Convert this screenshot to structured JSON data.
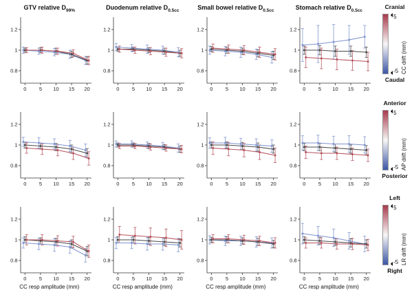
{
  "figure": {
    "xlabel": "CC resp amplitude (mm)",
    "columns": [
      {
        "pre": "GTV relative D",
        "sub": "99%"
      },
      {
        "pre": "Duodenum relative D",
        "sub": "0.5cc"
      },
      {
        "pre": "Small bowel relative D",
        "sub": "0.5cc"
      },
      {
        "pre": "Stomach relative D",
        "sub": "0.5cc"
      }
    ],
    "rows": [
      {
        "colorbar": {
          "top": "Cranial",
          "bottom": "Caudal",
          "label": "CC drift (mm)",
          "max": "5",
          "min": "-5"
        }
      },
      {
        "colorbar": {
          "top": "Anterior",
          "bottom": "Posterior",
          "label": "AP drift (mm)",
          "max": "5",
          "min": "-5"
        }
      },
      {
        "colorbar": {
          "top": "Left",
          "bottom": "Right",
          "label": "LR drift (mm)",
          "max": "5",
          "min": "-5"
        }
      }
    ],
    "colorbar_colors": {
      "top": "#a83a4c",
      "mid": "#f7f6f6",
      "bottom": "#3c56a6"
    },
    "series_colors": {
      "negative": "#7f93cf",
      "zero": "#4a4a4a",
      "positive": "#b5515d"
    }
  },
  "chart_data": [
    {
      "type": "line",
      "title": "GTV relative D99%",
      "drift_axis": "CC",
      "x": [
        0,
        5,
        10,
        15,
        20
      ],
      "ylim": [
        0.68,
        1.32
      ],
      "yticks": [
        0.8,
        1,
        1.2
      ],
      "series": [
        {
          "name": "-5 mm drift",
          "color": "#7f93cf",
          "values": [
            1.0,
            0.99,
            0.98,
            0.96,
            0.9
          ],
          "err": [
            0.03,
            0.03,
            0.035,
            0.04,
            0.04
          ]
        },
        {
          "name": "0 mm drift",
          "color": "#4a4a4a",
          "values": [
            1.0,
            1.0,
            0.99,
            0.96,
            0.9
          ],
          "err": [
            0.02,
            0.025,
            0.03,
            0.03,
            0.035
          ]
        },
        {
          "name": "+5 mm drift",
          "color": "#b5515d",
          "values": [
            1.0,
            1.0,
            0.99,
            0.97,
            0.9
          ],
          "err": [
            0.025,
            0.03,
            0.03,
            0.035,
            0.04
          ]
        }
      ]
    },
    {
      "type": "line",
      "title": "Duodenum relative D0.5cc",
      "drift_axis": "CC",
      "x": [
        0,
        5,
        10,
        15,
        20
      ],
      "ylim": [
        0.68,
        1.32
      ],
      "yticks": [
        0.8,
        1,
        1.2
      ],
      "series": [
        {
          "name": "-5 mm drift",
          "color": "#7f93cf",
          "values": [
            1.03,
            1.02,
            1.01,
            1.0,
            0.98
          ],
          "err": [
            0.035,
            0.035,
            0.04,
            0.04,
            0.045
          ]
        },
        {
          "name": "0 mm drift",
          "color": "#4a4a4a",
          "values": [
            1.01,
            1.01,
            1.0,
            0.99,
            0.97
          ],
          "err": [
            0.02,
            0.02,
            0.025,
            0.03,
            0.03
          ]
        },
        {
          "name": "+5 mm drift",
          "color": "#b5515d",
          "values": [
            1.01,
            1.0,
            0.99,
            0.98,
            0.97
          ],
          "err": [
            0.03,
            0.03,
            0.035,
            0.04,
            0.045
          ]
        }
      ]
    },
    {
      "type": "line",
      "title": "Small bowel relative D0.5cc",
      "drift_axis": "CC",
      "x": [
        0,
        5,
        10,
        15,
        20
      ],
      "ylim": [
        0.68,
        1.32
      ],
      "yticks": [
        0.8,
        1,
        1.2
      ],
      "series": [
        {
          "name": "-5 mm drift",
          "color": "#7f93cf",
          "values": [
            1.0,
            0.99,
            0.98,
            0.96,
            0.93
          ],
          "err": [
            0.04,
            0.045,
            0.05,
            0.05,
            0.055
          ]
        },
        {
          "name": "0 mm drift",
          "color": "#4a4a4a",
          "values": [
            1.01,
            1.0,
            0.99,
            0.97,
            0.95
          ],
          "err": [
            0.025,
            0.03,
            0.03,
            0.035,
            0.04
          ]
        },
        {
          "name": "+5 mm drift",
          "color": "#b5515d",
          "values": [
            1.02,
            1.01,
            1.0,
            0.98,
            0.96
          ],
          "err": [
            0.04,
            0.04,
            0.045,
            0.05,
            0.055
          ]
        }
      ]
    },
    {
      "type": "line",
      "title": "Stomach relative D0.5cc",
      "drift_axis": "CC",
      "x": [
        0,
        5,
        10,
        15,
        20
      ],
      "ylim": [
        0.68,
        1.32
      ],
      "yticks": [
        0.8,
        1,
        1.2
      ],
      "series": [
        {
          "name": "-5 mm drift",
          "color": "#7f93cf",
          "values": [
            1.05,
            1.06,
            1.08,
            1.1,
            1.13
          ],
          "err": [
            0.16,
            0.18,
            0.17,
            0.14,
            0.11
          ]
        },
        {
          "name": "0 mm drift",
          "color": "#4a4a4a",
          "values": [
            1.0,
            1.0,
            0.99,
            0.99,
            0.98
          ],
          "err": [
            0.04,
            0.045,
            0.05,
            0.05,
            0.05
          ]
        },
        {
          "name": "+5 mm drift",
          "color": "#b5515d",
          "values": [
            0.93,
            0.92,
            0.91,
            0.9,
            0.89
          ],
          "err": [
            0.1,
            0.1,
            0.1,
            0.095,
            0.09
          ]
        }
      ]
    },
    {
      "type": "line",
      "title": "GTV relative D99%",
      "drift_axis": "AP",
      "x": [
        0,
        5,
        10,
        15,
        20
      ],
      "ylim": [
        0.68,
        1.32
      ],
      "yticks": [
        0.8,
        1,
        1.2
      ],
      "series": [
        {
          "name": "-5 mm drift",
          "color": "#7f93cf",
          "values": [
            1.03,
            1.02,
            1.01,
            0.99,
            0.95
          ],
          "err": [
            0.045,
            0.05,
            0.05,
            0.055,
            0.06
          ]
        },
        {
          "name": "0 mm drift",
          "color": "#4a4a4a",
          "values": [
            1.0,
            0.99,
            0.98,
            0.96,
            0.92
          ],
          "err": [
            0.03,
            0.03,
            0.035,
            0.04,
            0.045
          ]
        },
        {
          "name": "+5 mm drift",
          "color": "#b5515d",
          "values": [
            0.97,
            0.96,
            0.95,
            0.92,
            0.87
          ],
          "err": [
            0.05,
            0.05,
            0.055,
            0.06,
            0.065
          ]
        }
      ]
    },
    {
      "type": "line",
      "title": "Duodenum relative D0.5cc",
      "drift_axis": "AP",
      "x": [
        0,
        5,
        10,
        15,
        20
      ],
      "ylim": [
        0.68,
        1.32
      ],
      "yticks": [
        0.8,
        1,
        1.2
      ],
      "series": [
        {
          "name": "-5 mm drift",
          "color": "#7f93cf",
          "values": [
            1.01,
            1.01,
            1.0,
            0.99,
            0.97
          ],
          "err": [
            0.03,
            0.03,
            0.03,
            0.035,
            0.04
          ]
        },
        {
          "name": "0 mm drift",
          "color": "#4a4a4a",
          "values": [
            1.0,
            1.0,
            0.99,
            0.98,
            0.96
          ],
          "err": [
            0.02,
            0.02,
            0.025,
            0.025,
            0.03
          ]
        },
        {
          "name": "+5 mm drift",
          "color": "#b5515d",
          "values": [
            0.99,
            0.99,
            0.98,
            0.97,
            0.96
          ],
          "err": [
            0.025,
            0.025,
            0.03,
            0.03,
            0.035
          ]
        }
      ]
    },
    {
      "type": "line",
      "title": "Small bowel relative D0.5cc",
      "drift_axis": "AP",
      "x": [
        0,
        5,
        10,
        15,
        20
      ],
      "ylim": [
        0.68,
        1.32
      ],
      "yticks": [
        0.8,
        1,
        1.2
      ],
      "series": [
        {
          "name": "-5 mm drift",
          "color": "#7f93cf",
          "values": [
            1.02,
            1.02,
            1.01,
            1.0,
            0.99
          ],
          "err": [
            0.05,
            0.055,
            0.055,
            0.06,
            0.06
          ]
        },
        {
          "name": "0 mm drift",
          "color": "#4a4a4a",
          "values": [
            1.0,
            1.0,
            0.99,
            0.98,
            0.96
          ],
          "err": [
            0.03,
            0.03,
            0.035,
            0.04,
            0.04
          ]
        },
        {
          "name": "+5 mm drift",
          "color": "#b5515d",
          "values": [
            0.97,
            0.96,
            0.95,
            0.93,
            0.9
          ],
          "err": [
            0.06,
            0.065,
            0.065,
            0.07,
            0.07
          ]
        }
      ]
    },
    {
      "type": "line",
      "title": "Stomach relative D0.5cc",
      "drift_axis": "AP",
      "x": [
        0,
        5,
        10,
        15,
        20
      ],
      "ylim": [
        0.68,
        1.32
      ],
      "yticks": [
        0.8,
        1,
        1.2
      ],
      "series": [
        {
          "name": "-5 mm drift",
          "color": "#7f93cf",
          "values": [
            1.02,
            1.02,
            1.01,
            1.01,
            1.0
          ],
          "err": [
            0.07,
            0.075,
            0.075,
            0.08,
            0.08
          ]
        },
        {
          "name": "0 mm drift",
          "color": "#4a4a4a",
          "values": [
            0.98,
            0.98,
            0.97,
            0.96,
            0.95
          ],
          "err": [
            0.035,
            0.035,
            0.04,
            0.04,
            0.045
          ]
        },
        {
          "name": "+5 mm drift",
          "color": "#b5515d",
          "values": [
            0.93,
            0.92,
            0.92,
            0.91,
            0.9
          ],
          "err": [
            0.06,
            0.06,
            0.06,
            0.06,
            0.06
          ]
        }
      ]
    },
    {
      "type": "line",
      "title": "GTV relative D99%",
      "drift_axis": "LR",
      "x": [
        0,
        5,
        10,
        15,
        20
      ],
      "ylim": [
        0.68,
        1.32
      ],
      "yticks": [
        0.8,
        1,
        1.2
      ],
      "series": [
        {
          "name": "-5 mm drift",
          "color": "#7f93cf",
          "values": [
            0.97,
            0.96,
            0.95,
            0.93,
            0.85
          ],
          "err": [
            0.05,
            0.055,
            0.06,
            0.06,
            0.065
          ]
        },
        {
          "name": "0 mm drift",
          "color": "#4a4a4a",
          "values": [
            1.0,
            0.99,
            0.98,
            0.96,
            0.89
          ],
          "err": [
            0.03,
            0.03,
            0.035,
            0.04,
            0.045
          ]
        },
        {
          "name": "+5 mm drift",
          "color": "#b5515d",
          "values": [
            1.0,
            1.0,
            0.99,
            0.98,
            0.89
          ],
          "err": [
            0.05,
            0.05,
            0.05,
            0.055,
            0.06
          ]
        }
      ]
    },
    {
      "type": "line",
      "title": "Duodenum relative D0.5cc",
      "drift_axis": "LR",
      "x": [
        0,
        5,
        10,
        15,
        20
      ],
      "ylim": [
        0.68,
        1.32
      ],
      "yticks": [
        0.8,
        1,
        1.2
      ],
      "series": [
        {
          "name": "-5 mm drift",
          "color": "#7f93cf",
          "values": [
            0.97,
            0.97,
            0.96,
            0.96,
            0.95
          ],
          "err": [
            0.055,
            0.055,
            0.06,
            0.06,
            0.065
          ]
        },
        {
          "name": "0 mm drift",
          "color": "#4a4a4a",
          "values": [
            1.0,
            1.0,
            0.99,
            0.98,
            0.97
          ],
          "err": [
            0.03,
            0.03,
            0.035,
            0.035,
            0.04
          ]
        },
        {
          "name": "+5 mm drift",
          "color": "#b5515d",
          "values": [
            1.05,
            1.04,
            1.03,
            1.02,
            1.0
          ],
          "err": [
            0.08,
            0.08,
            0.085,
            0.085,
            0.09
          ]
        }
      ]
    },
    {
      "type": "line",
      "title": "Small bowel relative D0.5cc",
      "drift_axis": "LR",
      "x": [
        0,
        5,
        10,
        15,
        20
      ],
      "ylim": [
        0.68,
        1.32
      ],
      "yticks": [
        0.8,
        1,
        1.2
      ],
      "series": [
        {
          "name": "-5 mm drift",
          "color": "#7f93cf",
          "values": [
            1.0,
            0.99,
            0.99,
            0.98,
            0.97
          ],
          "err": [
            0.04,
            0.045,
            0.045,
            0.05,
            0.05
          ]
        },
        {
          "name": "0 mm drift",
          "color": "#4a4a4a",
          "values": [
            1.0,
            1.0,
            0.99,
            0.98,
            0.96
          ],
          "err": [
            0.025,
            0.03,
            0.03,
            0.035,
            0.035
          ]
        },
        {
          "name": "+5 mm drift",
          "color": "#b5515d",
          "values": [
            1.01,
            1.01,
            1.0,
            0.99,
            0.97
          ],
          "err": [
            0.04,
            0.04,
            0.045,
            0.045,
            0.05
          ]
        }
      ]
    },
    {
      "type": "line",
      "title": "Stomach relative D0.5cc",
      "drift_axis": "LR",
      "x": [
        0,
        5,
        10,
        15,
        20
      ],
      "ylim": [
        0.68,
        1.32
      ],
      "yticks": [
        0.8,
        1,
        1.2
      ],
      "series": [
        {
          "name": "-5 mm drift",
          "color": "#7f93cf",
          "values": [
            1.06,
            1.04,
            1.02,
            0.99,
            0.96
          ],
          "err": [
            0.1,
            0.09,
            0.085,
            0.08,
            0.075
          ]
        },
        {
          "name": "0 mm drift",
          "color": "#4a4a4a",
          "values": [
            1.0,
            0.99,
            0.98,
            0.97,
            0.96
          ],
          "err": [
            0.03,
            0.035,
            0.035,
            0.04,
            0.04
          ]
        },
        {
          "name": "+5 mm drift",
          "color": "#b5515d",
          "values": [
            0.97,
            0.97,
            0.96,
            0.96,
            0.95
          ],
          "err": [
            0.05,
            0.05,
            0.05,
            0.055,
            0.055
          ]
        }
      ]
    }
  ]
}
